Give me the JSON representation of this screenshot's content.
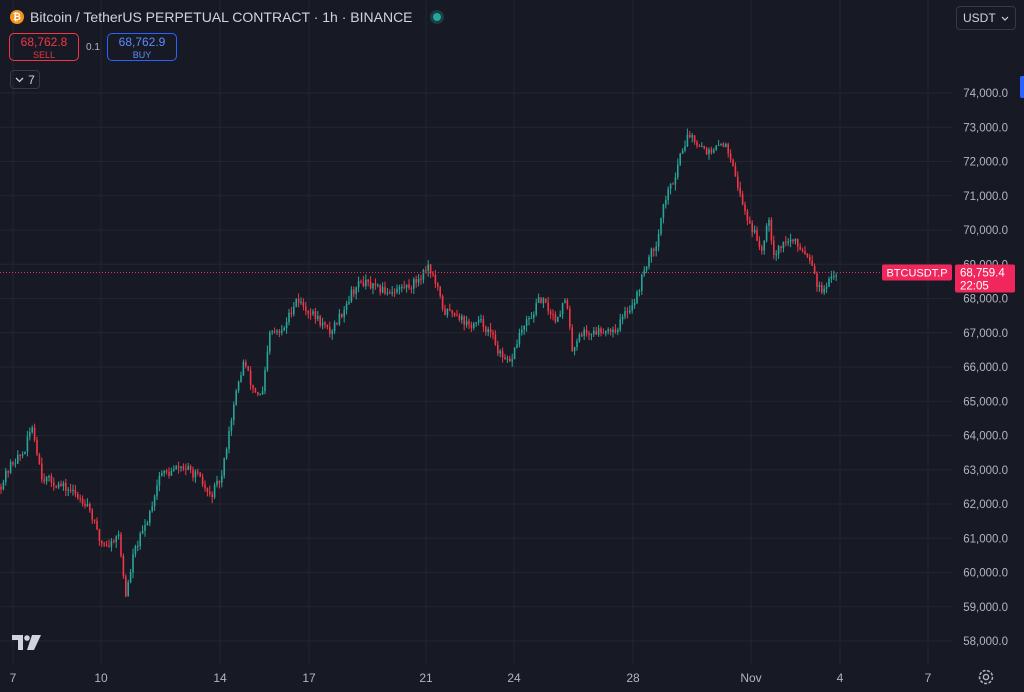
{
  "header": {
    "coin_letter": "₿",
    "title": "Bitcoin / TetherUS PERPETUAL CONTRACT · 1h · BINANCE"
  },
  "trade": {
    "sell_price": "68,762.8",
    "sell_label": "SELL",
    "quantity": "0.1",
    "buy_price": "68,762.9",
    "buy_label": "BUY"
  },
  "indicators_toggle": {
    "count": "7",
    "icon": "chevron-down-icon"
  },
  "currency_select": {
    "value": "USDT",
    "icon": "chevron-down-icon"
  },
  "colors": {
    "up": "#26a69a",
    "down": "#f23645",
    "background": "#171a24",
    "grid": "#232632",
    "axis_text": "#b2b5be",
    "price_tag": "#f0265d"
  },
  "chart_data": {
    "type": "candlestick",
    "title": "",
    "xlabel": "",
    "ylabel": "",
    "ylim": [
      57500,
      74500
    ],
    "y_ticks": [
      "58,000.0",
      "59,000.0",
      "60,000.0",
      "61,000.0",
      "62,000.0",
      "63,000.0",
      "64,000.0",
      "65,000.0",
      "66,000.0",
      "67,000.0",
      "68,000.0",
      "69,000.0",
      "70,000.0",
      "71,000.0",
      "72,000.0",
      "73,000.0",
      "74,000.0"
    ],
    "x_ticks": [
      "7",
      "10",
      "14",
      "17",
      "21",
      "24",
      "28",
      "Nov",
      "4",
      "7"
    ],
    "grid": true,
    "last_price": {
      "symbol": "BTCUSDT.P",
      "value": "68,759.4",
      "countdown": "22:05",
      "numeric": 68759.4
    },
    "price_path": [
      [
        0,
        62500
      ],
      [
        12,
        63200
      ],
      [
        24,
        63500
      ],
      [
        32,
        64300
      ],
      [
        42,
        62800
      ],
      [
        55,
        62600
      ],
      [
        70,
        62400
      ],
      [
        88,
        62000
      ],
      [
        100,
        60900
      ],
      [
        110,
        60800
      ],
      [
        118,
        61200
      ],
      [
        126,
        59300
      ],
      [
        134,
        60600
      ],
      [
        146,
        61400
      ],
      [
        152,
        62000
      ],
      [
        160,
        62900
      ],
      [
        170,
        62900
      ],
      [
        180,
        63100
      ],
      [
        188,
        63000
      ],
      [
        198,
        62800
      ],
      [
        210,
        62200
      ],
      [
        222,
        62800
      ],
      [
        228,
        64000
      ],
      [
        236,
        65200
      ],
      [
        244,
        66200
      ],
      [
        252,
        65400
      ],
      [
        262,
        65100
      ],
      [
        270,
        67000
      ],
      [
        282,
        67000
      ],
      [
        296,
        68000
      ],
      [
        306,
        67700
      ],
      [
        318,
        67400
      ],
      [
        330,
        67000
      ],
      [
        342,
        67600
      ],
      [
        352,
        68200
      ],
      [
        362,
        68500
      ],
      [
        374,
        68300
      ],
      [
        388,
        68200
      ],
      [
        400,
        68300
      ],
      [
        412,
        68400
      ],
      [
        422,
        68700
      ],
      [
        428,
        69000
      ],
      [
        436,
        68400
      ],
      [
        444,
        67600
      ],
      [
        456,
        67600
      ],
      [
        468,
        67200
      ],
      [
        482,
        67300
      ],
      [
        494,
        66800
      ],
      [
        502,
        66200
      ],
      [
        510,
        66100
      ],
      [
        520,
        67000
      ],
      [
        532,
        67500
      ],
      [
        540,
        68000
      ],
      [
        548,
        67700
      ],
      [
        556,
        67400
      ],
      [
        566,
        68000
      ],
      [
        572,
        66500
      ],
      [
        580,
        67000
      ],
      [
        592,
        67000
      ],
      [
        604,
        67100
      ],
      [
        616,
        67100
      ],
      [
        626,
        67600
      ],
      [
        636,
        68000
      ],
      [
        646,
        69000
      ],
      [
        656,
        69600
      ],
      [
        664,
        70800
      ],
      [
        674,
        71500
      ],
      [
        682,
        72400
      ],
      [
        690,
        72800
      ],
      [
        700,
        72500
      ],
      [
        712,
        72200
      ],
      [
        722,
        72600
      ],
      [
        732,
        72100
      ],
      [
        740,
        71000
      ],
      [
        748,
        70300
      ],
      [
        756,
        69800
      ],
      [
        762,
        69400
      ],
      [
        768,
        70500
      ],
      [
        774,
        69300
      ],
      [
        782,
        69600
      ],
      [
        792,
        69700
      ],
      [
        804,
        69400
      ],
      [
        812,
        69100
      ],
      [
        818,
        68300
      ],
      [
        826,
        68200
      ],
      [
        832,
        68700
      ],
      [
        838,
        68760
      ]
    ]
  }
}
